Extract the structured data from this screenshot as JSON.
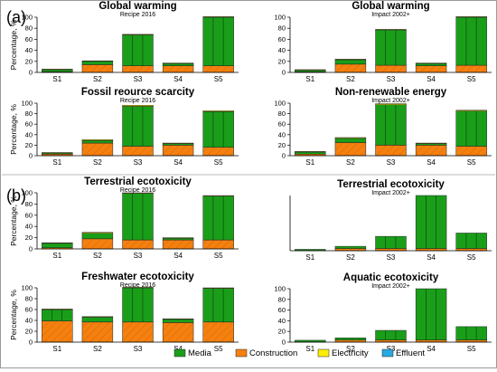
{
  "panel_labels": [
    "(a)",
    "(b)"
  ],
  "ylabel": "Percentage, %",
  "colors": {
    "Media": "#1a9e1a",
    "Construction": "#f5800f",
    "Electricity": "#ffee00",
    "Effluent": "#2aa8e0"
  },
  "legend": [
    {
      "name": "Media",
      "color": "#1a9e1a"
    },
    {
      "name": "Construction",
      "color": "#f5800f"
    },
    {
      "name": "Electricity",
      "color": "#ffee00"
    },
    {
      "name": "Effluent",
      "color": "#2aa8e0"
    }
  ],
  "chart_data": [
    {
      "type": "bar",
      "stacked": true,
      "title": "Global warming",
      "subtitle": "Recipe 2016",
      "ylabel": "Percentage, %",
      "categories": [
        "S1",
        "S2",
        "S3",
        "S4",
        "S5"
      ],
      "yticks": [
        0,
        20,
        40,
        60,
        80,
        100
      ],
      "ylim": [
        0,
        100
      ],
      "series": [
        {
          "name": "Construction",
          "values": [
            1,
            14,
            12,
            12,
            12
          ]
        },
        {
          "name": "Media",
          "values": [
            4,
            6,
            56,
            4,
            88
          ]
        },
        {
          "name": "Electricity",
          "values": [
            0.3,
            0.8,
            0.8,
            0.5,
            0.4
          ]
        }
      ]
    },
    {
      "type": "bar",
      "stacked": true,
      "title": "Global warming",
      "subtitle": "Impact 2002+",
      "ylabel": "",
      "categories": [
        "S1",
        "S2",
        "S3",
        "S4",
        "S5"
      ],
      "yticks": [
        0,
        20,
        40,
        60,
        80,
        100
      ],
      "ylim": [
        0,
        100
      ],
      "series": [
        {
          "name": "Construction",
          "values": [
            1,
            15,
            13,
            12,
            13
          ]
        },
        {
          "name": "Media",
          "values": [
            3,
            8,
            64,
            4,
            87
          ]
        },
        {
          "name": "Electricity",
          "values": [
            0.3,
            0.8,
            0.8,
            0.5,
            0.4
          ]
        }
      ]
    },
    {
      "type": "bar",
      "stacked": true,
      "title": "Fossil reource scarcity",
      "subtitle": "Recipe 2016",
      "ylabel": "Percentage, %",
      "categories": [
        "S1",
        "S2",
        "S3",
        "S4",
        "S5"
      ],
      "yticks": [
        0,
        20,
        40,
        60,
        80,
        100
      ],
      "ylim": [
        0,
        100
      ],
      "series": [
        {
          "name": "Construction",
          "values": [
            3,
            24,
            18,
            20,
            16
          ]
        },
        {
          "name": "Media",
          "values": [
            2,
            5,
            76,
            3,
            68
          ]
        },
        {
          "name": "Electricity",
          "values": [
            0.5,
            1.5,
            2,
            1,
            1.5
          ]
        }
      ]
    },
    {
      "type": "bar",
      "stacked": true,
      "title": "Non-renewable energy",
      "subtitle": "Impact 2002+",
      "ylabel": "",
      "categories": [
        "S1",
        "S2",
        "S3",
        "S4",
        "S5"
      ],
      "yticks": [
        0,
        20,
        40,
        60,
        80,
        100
      ],
      "ylim": [
        0,
        100
      ],
      "series": [
        {
          "name": "Construction",
          "values": [
            3,
            25,
            20,
            20,
            18
          ]
        },
        {
          "name": "Media",
          "values": [
            4,
            8,
            77,
            3,
            67
          ]
        },
        {
          "name": "Electricity",
          "values": [
            0.5,
            1.5,
            2,
            1,
            1.5
          ]
        }
      ]
    },
    {
      "type": "bar",
      "stacked": true,
      "title": "Terrestrial ecotoxicity",
      "subtitle": "Recipe 2016",
      "ylabel": "Percentage, %",
      "categories": [
        "S1",
        "S2",
        "S3",
        "S4",
        "S5"
      ],
      "yticks": [
        0,
        20,
        40,
        60,
        80,
        100
      ],
      "ylim": [
        0,
        100
      ],
      "series": [
        {
          "name": "Construction",
          "values": [
            2,
            18,
            16,
            16,
            16
          ]
        },
        {
          "name": "Media",
          "values": [
            8,
            10,
            83,
            3,
            78
          ]
        },
        {
          "name": "Electricity",
          "values": [
            0.5,
            1.5,
            1,
            1,
            1
          ]
        }
      ]
    },
    {
      "type": "bar",
      "stacked": true,
      "title": "Terrestrial ecotoxicity",
      "subtitle": "Impact 2002+",
      "ylabel": "",
      "categories": [
        "S1",
        "S2",
        "S3",
        "S4",
        "S5"
      ],
      "yticks": [],
      "ylim": [
        0,
        100
      ],
      "series": [
        {
          "name": "Construction",
          "values": [
            0.5,
            4,
            4,
            4,
            4
          ]
        },
        {
          "name": "Media",
          "values": [
            2,
            4,
            22,
            96,
            28
          ]
        },
        {
          "name": "Electricity",
          "values": [
            0,
            0,
            0,
            0,
            0
          ]
        }
      ]
    },
    {
      "type": "bar",
      "stacked": true,
      "title": "Freshwater ecotoxicity",
      "subtitle": "Recipe 2016",
      "ylabel": "Percentage, %",
      "categories": [
        "S1",
        "S2",
        "S3",
        "S4",
        "S5"
      ],
      "yticks": [
        0,
        20,
        40,
        60,
        80,
        100
      ],
      "ylim": [
        0,
        100
      ],
      "series": [
        {
          "name": "Construction",
          "values": [
            39,
            37,
            37,
            36,
            37
          ]
        },
        {
          "name": "Media",
          "values": [
            21,
            9,
            63,
            6,
            62
          ]
        },
        {
          "name": "Electricity",
          "values": [
            1,
            1,
            0.5,
            1,
            0.5
          ]
        }
      ]
    },
    {
      "type": "bar",
      "stacked": true,
      "title": "Aquatic ecotoxicity",
      "subtitle": "Impact 2002+",
      "ylabel": "",
      "categories": [
        "S1",
        "S2",
        "S3",
        "S4",
        "S5"
      ],
      "yticks": [
        0,
        20,
        40,
        60,
        80,
        100
      ],
      "ylim": [
        0,
        100
      ],
      "series": [
        {
          "name": "Construction",
          "values": [
            0.5,
            4,
            4,
            4,
            4
          ]
        },
        {
          "name": "Media",
          "values": [
            3,
            4,
            18,
            96,
            25
          ]
        },
        {
          "name": "Electricity",
          "values": [
            0,
            0,
            0,
            0,
            0
          ]
        }
      ]
    }
  ]
}
